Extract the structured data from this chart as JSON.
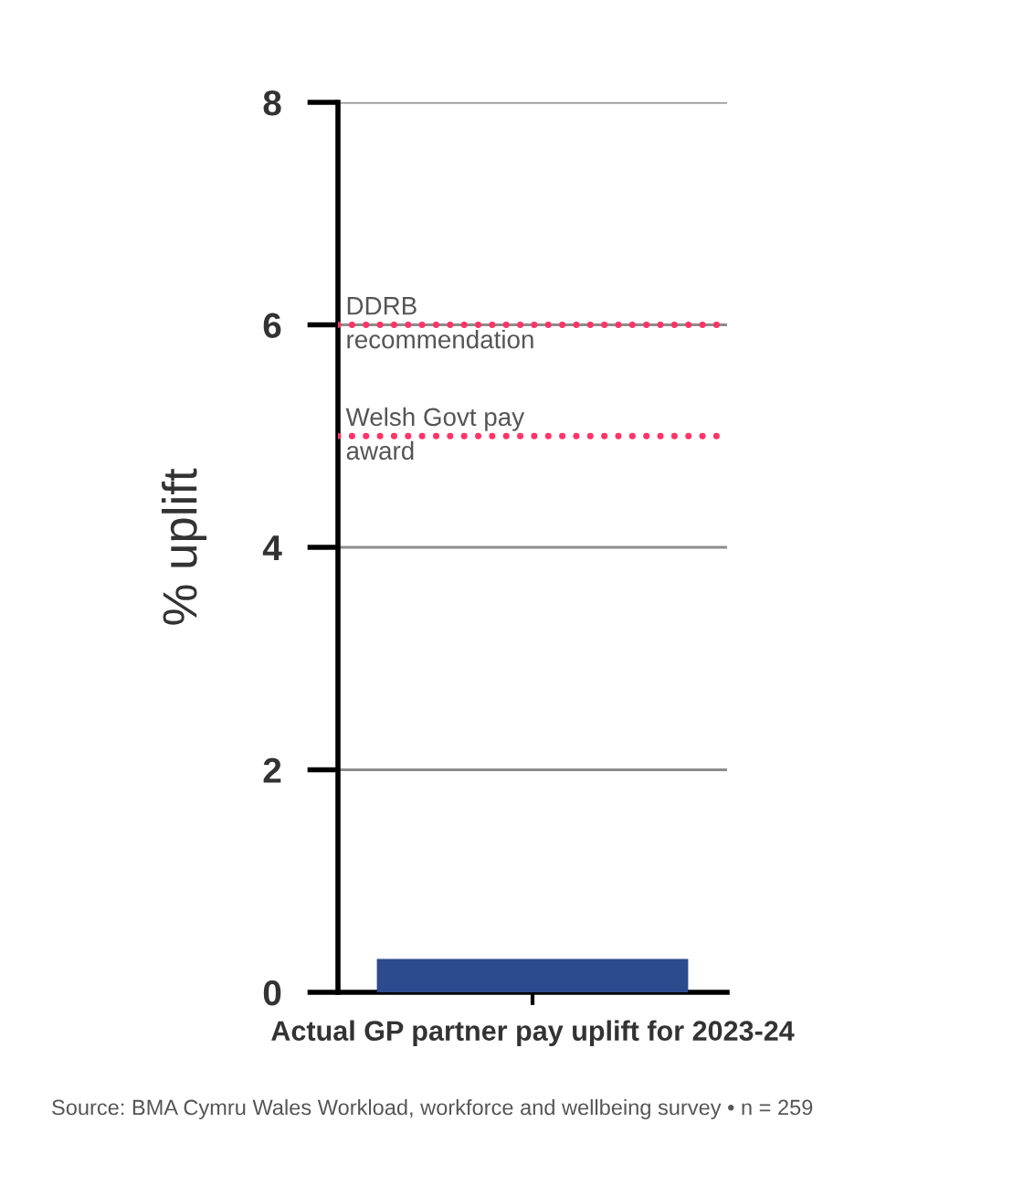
{
  "chart_data": {
    "type": "bar",
    "ylabel": "% uplift",
    "categories": [
      "Actual GP partner pay uplift for 2023-24"
    ],
    "values": [
      0.3
    ],
    "color": "#2e4a8f",
    "ylim": [
      0,
      8
    ],
    "yticks": [
      0,
      2,
      4,
      6,
      8
    ],
    "grid": "y",
    "ref_lines": [
      {
        "axis": "y",
        "value": 6,
        "label": "DDRB\nrecommendation",
        "color": "#ff3366",
        "line_style": "dotted"
      },
      {
        "axis": "y",
        "value": 5,
        "label": "Welsh Govt pay\naward",
        "color": "#ff3366",
        "line_style": "dotted"
      }
    ],
    "annotations": [
      "Source: BMA Cymru Wales Workload, workforce and wellbeing survey • n = 259"
    ]
  }
}
